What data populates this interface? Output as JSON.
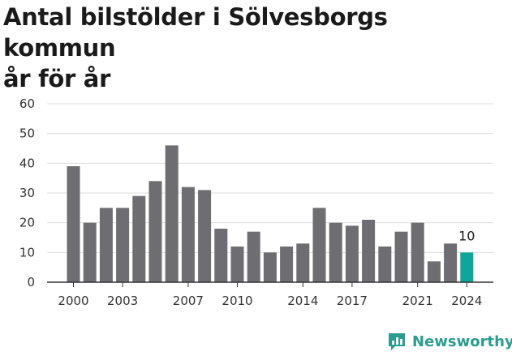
{
  "chart_data": {
    "type": "bar",
    "title": "Antal bilstölder i Sölvesborgs kommun",
    "subtitle": "år för år",
    "xlabel": "",
    "ylabel": "",
    "ylim": [
      0,
      60
    ],
    "yticks": [
      0,
      10,
      20,
      30,
      40,
      50,
      60
    ],
    "categories": [
      "2000",
      "2001",
      "2002",
      "2003",
      "2004",
      "2005",
      "2006",
      "2007",
      "2008",
      "2009",
      "2010",
      "2011",
      "2012",
      "2013",
      "2014",
      "2015",
      "2016",
      "2017",
      "2018",
      "2019",
      "2020",
      "2021",
      "2022",
      "2023",
      "2024"
    ],
    "xtick_labels": [
      "2000",
      "2003",
      "2007",
      "2010",
      "2014",
      "2017",
      "2021",
      "2024"
    ],
    "values": [
      39,
      20,
      25,
      25,
      29,
      34,
      46,
      32,
      31,
      18,
      12,
      17,
      10,
      12,
      13,
      25,
      20,
      19,
      21,
      12,
      17,
      20,
      7,
      13,
      10
    ],
    "highlight_index": 24,
    "highlight_label": "10",
    "grid": true,
    "colors": {
      "bar": "#6e6d72",
      "highlight": "#0fa69a",
      "grid": "#dddddd",
      "axis": "#333333"
    }
  },
  "brand": {
    "name": "Newsworthy",
    "icon": "newsworthy-logo-icon",
    "color": "#2a9d8f"
  }
}
